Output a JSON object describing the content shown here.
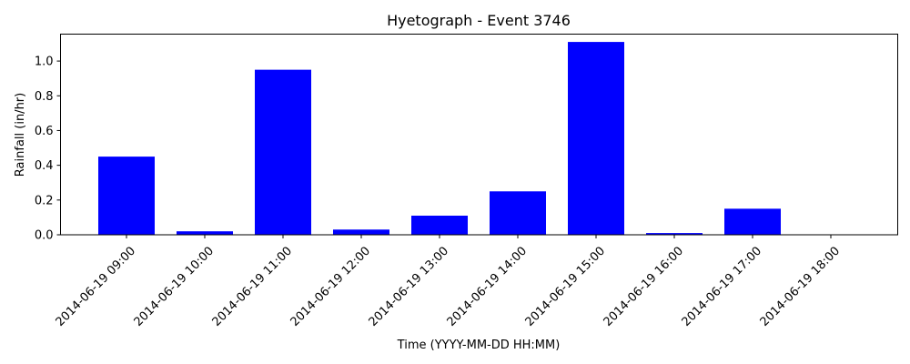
{
  "chart_data": {
    "type": "bar",
    "title": "Hyetograph - Event 3746",
    "xlabel": "Time (YYYY-MM-DD HH:MM)",
    "ylabel": "Rainfall (in/hr)",
    "categories": [
      "2014-06-19 09:00",
      "2014-06-19 10:00",
      "2014-06-19 11:00",
      "2014-06-19 12:00",
      "2014-06-19 13:00",
      "2014-06-19 14:00",
      "2014-06-19 15:00",
      "2014-06-19 16:00",
      "2014-06-19 17:00",
      "2014-06-19 18:00"
    ],
    "values": [
      0.45,
      0.02,
      0.95,
      0.03,
      0.11,
      0.25,
      1.11,
      0.01,
      0.15,
      0.0
    ],
    "ylim": [
      0,
      1.155
    ],
    "yticks": [
      "0.0",
      "0.2",
      "0.4",
      "0.6",
      "0.8",
      "1.0"
    ],
    "bar_color": "#0000ff",
    "grid": false,
    "legend": "none"
  }
}
